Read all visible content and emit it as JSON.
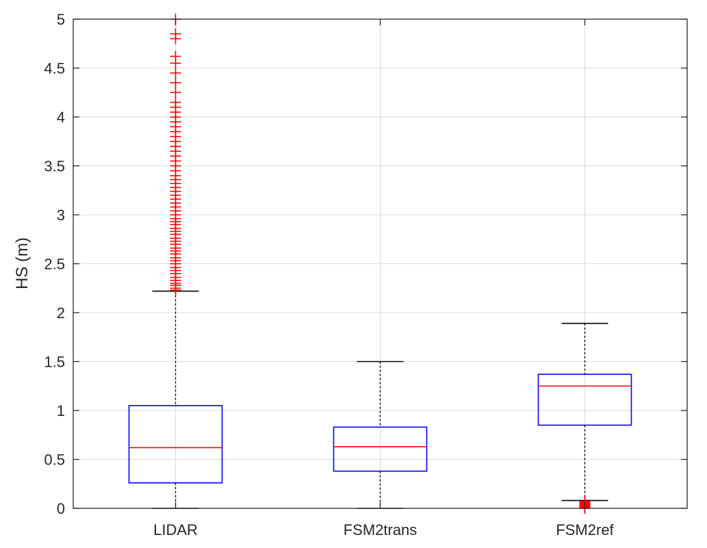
{
  "chart_data": {
    "type": "boxplot",
    "title": "",
    "xlabel": "",
    "ylabel": "HS (m)",
    "ylim": [
      0,
      5
    ],
    "yticks": [
      0,
      0.5,
      1,
      1.5,
      2,
      2.5,
      3,
      3.5,
      4,
      4.5,
      5
    ],
    "ytick_labels": [
      "0",
      "0.5",
      "1",
      "1.5",
      "2",
      "2.5",
      "3",
      "3.5",
      "4",
      "4.5",
      "5"
    ],
    "grid": true,
    "categories": [
      "LIDAR",
      "FSM2trans",
      "FSM2ref"
    ],
    "boxes": [
      {
        "category": "LIDAR",
        "whisker_low": 0.0,
        "q1": 0.26,
        "median": 0.62,
        "q3": 1.05,
        "whisker_high": 2.22,
        "outliers": [
          2.23,
          2.25,
          2.28,
          2.3,
          2.33,
          2.36,
          2.4,
          2.43,
          2.46,
          2.5,
          2.53,
          2.56,
          2.6,
          2.63,
          2.66,
          2.7,
          2.73,
          2.76,
          2.8,
          2.83,
          2.86,
          2.9,
          2.93,
          2.96,
          3.0,
          3.04,
          3.08,
          3.12,
          3.16,
          3.2,
          3.24,
          3.28,
          3.32,
          3.36,
          3.4,
          3.45,
          3.5,
          3.55,
          3.6,
          3.65,
          3.7,
          3.75,
          3.8,
          3.85,
          3.9,
          3.95,
          4.0,
          4.05,
          4.1,
          4.15,
          4.25,
          4.35,
          4.45,
          4.55,
          4.62,
          4.8,
          4.85,
          5.0
        ]
      },
      {
        "category": "FSM2trans",
        "whisker_low": 0.0,
        "q1": 0.38,
        "median": 0.63,
        "q3": 0.83,
        "whisker_high": 1.5,
        "outliers": []
      },
      {
        "category": "FSM2ref",
        "whisker_low": 0.08,
        "q1": 0.85,
        "median": 1.25,
        "q3": 1.37,
        "whisker_high": 1.89,
        "outliers": [
          0.0,
          0.01,
          0.02,
          0.03,
          0.04,
          0.05,
          0.06,
          0.07
        ]
      }
    ],
    "colors": {
      "box": "#0000ff",
      "median": "#ff0000",
      "whisker": "#000000",
      "outlier": "#ff0000",
      "grid": "#d9d9d9",
      "axis": "#262626"
    }
  }
}
